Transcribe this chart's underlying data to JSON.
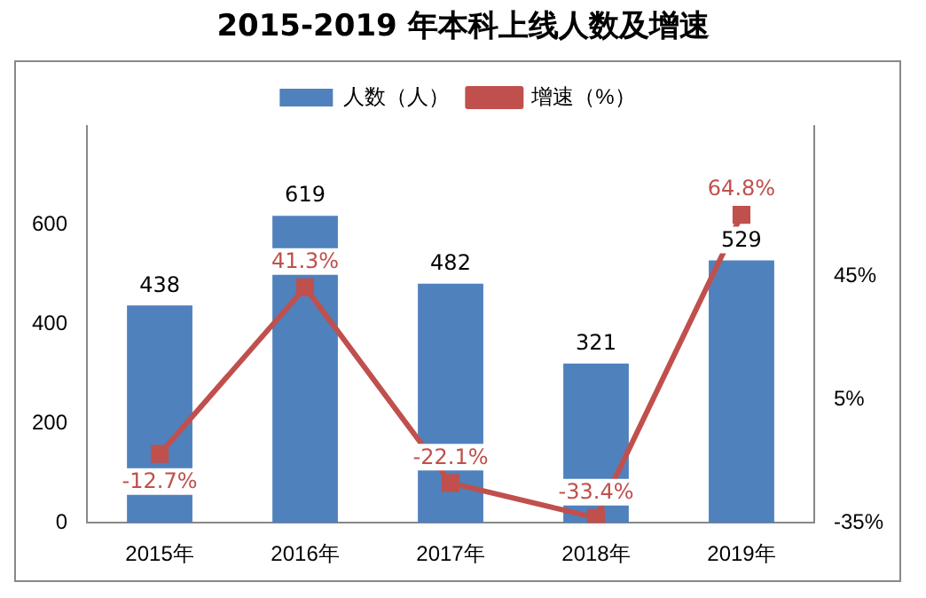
{
  "chart_data": {
    "type": "bar",
    "title": "2015-2019 年本科上线人数及增速",
    "categories": [
      "2015年",
      "2016年",
      "2017年",
      "2018年",
      "2019年"
    ],
    "series": [
      {
        "name": "人数（人）",
        "color": "#4f81bd",
        "values": [
          438,
          619,
          482,
          321,
          529
        ]
      },
      {
        "name": "增速（%）",
        "type": "line",
        "axis": "y2",
        "color": "#c0504d",
        "marker": "square",
        "values": [
          -12.7,
          41.3,
          -22.1,
          -33.4,
          64.8
        ],
        "value_labels": [
          "-12.7%",
          "41.3%",
          "-22.1%",
          "-33.4%",
          "64.8%"
        ]
      }
    ],
    "ylim": [
      0,
      800
    ],
    "yticks": [
      0,
      200,
      400,
      600
    ],
    "y2lim": [
      -35,
      93.6
    ],
    "y2ticks": [
      {
        "value": -35,
        "label": "-35%"
      },
      {
        "value": 5,
        "label": "5%"
      },
      {
        "value": 45,
        "label": "45%"
      }
    ],
    "data_labels": true,
    "legend": "top",
    "grid": false
  }
}
